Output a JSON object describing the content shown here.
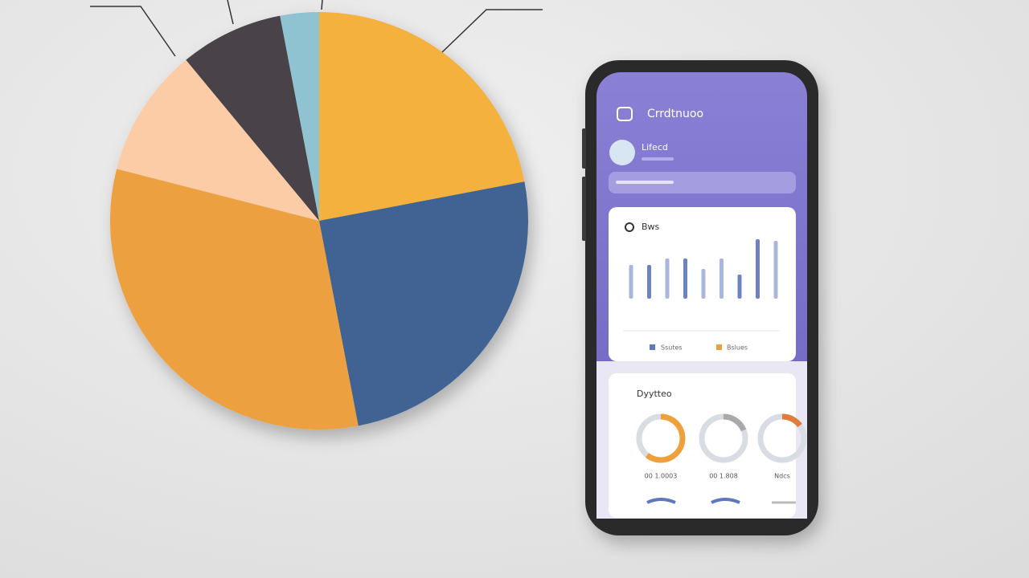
{
  "chart_data": [
    {
      "type": "pie",
      "values": [
        22,
        25,
        32,
        10,
        8,
        3
      ],
      "colors": [
        "#f4b13e",
        "#3f6494",
        "#eca040",
        "#fbcca6",
        "#48424a",
        "#8fc3d1"
      ]
    },
    {
      "type": "bar",
      "values": [
        42,
        42,
        50,
        50,
        37,
        50,
        30,
        74,
        72
      ],
      "colors": [
        "#a9b6dd",
        "#6d82c2",
        "#a9b6dd",
        "#6d82c2",
        "#a9b6dd",
        "#a9b6dd",
        "#6d82c2",
        "#6d82c2",
        "#a9b6dd"
      ],
      "ylim": [
        0,
        80
      ]
    }
  ],
  "phone": {
    "title": "Crrdtnuoo",
    "user": "Lifecd",
    "card_title": "Bws",
    "legend": [
      "Ssutes",
      "Bslues"
    ],
    "card2_title": "Dyytteo",
    "donut_labels": [
      "00 1.0003",
      "00 1.808",
      "Ndcs"
    ]
  }
}
